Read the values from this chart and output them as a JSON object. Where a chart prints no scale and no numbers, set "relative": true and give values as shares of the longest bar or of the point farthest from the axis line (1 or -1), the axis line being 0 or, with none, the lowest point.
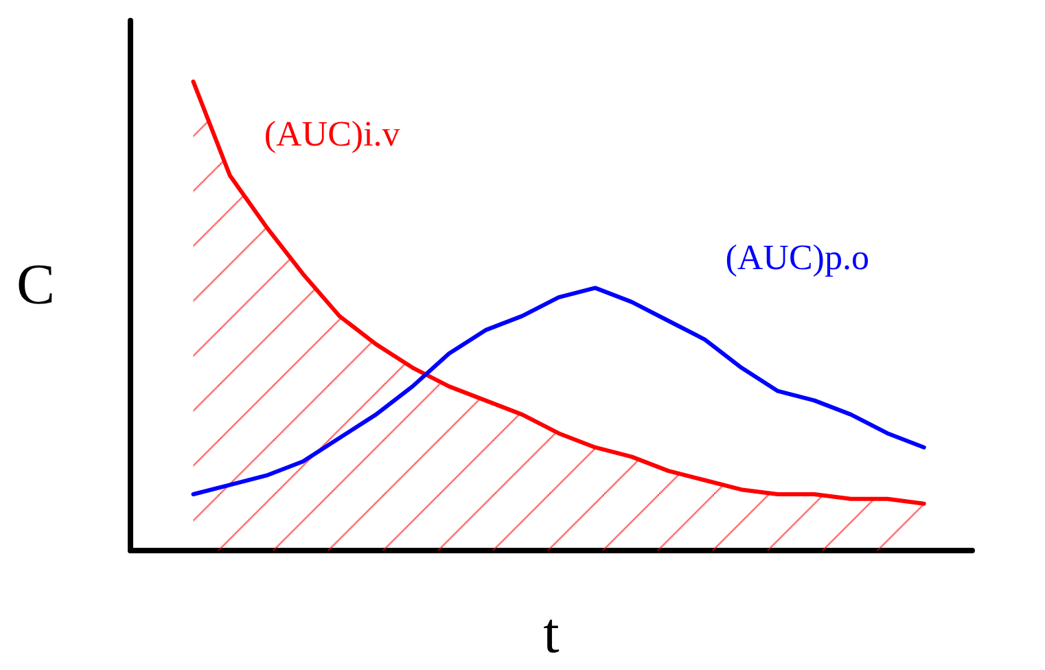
{
  "chart_data": {
    "type": "line",
    "relative": true,
    "xlabel": "t",
    "ylabel": "C",
    "legend": false,
    "grid": false,
    "categories": [
      null,
      null,
      null,
      null,
      null,
      null,
      null,
      null,
      null,
      null,
      null,
      null,
      null,
      null,
      null,
      null,
      null,
      null,
      null,
      null,
      null
    ],
    "series": [
      {
        "name": "(AUC)i.v",
        "type": "area",
        "color": "#ff0000",
        "values": [
          1,
          0.8,
          0.69,
          0.59,
          0.5,
          0.44,
          0.39,
          0.35,
          0.32,
          0.29,
          0.25,
          0.22,
          0.2,
          0.17,
          0.15,
          0.13,
          0.12,
          0.12,
          0.11,
          0.11,
          0.1
        ]
      },
      {
        "name": "(AUC)p.o",
        "color": "#0000ff",
        "values": [
          0.12,
          0.14,
          0.16,
          0.19,
          0.24,
          0.29,
          0.35,
          0.42,
          0.47,
          0.5,
          0.54,
          0.56,
          0.53,
          0.49,
          0.45,
          0.39,
          0.34,
          0.32,
          0.29,
          0.25,
          0.22
        ]
      }
    ]
  }
}
